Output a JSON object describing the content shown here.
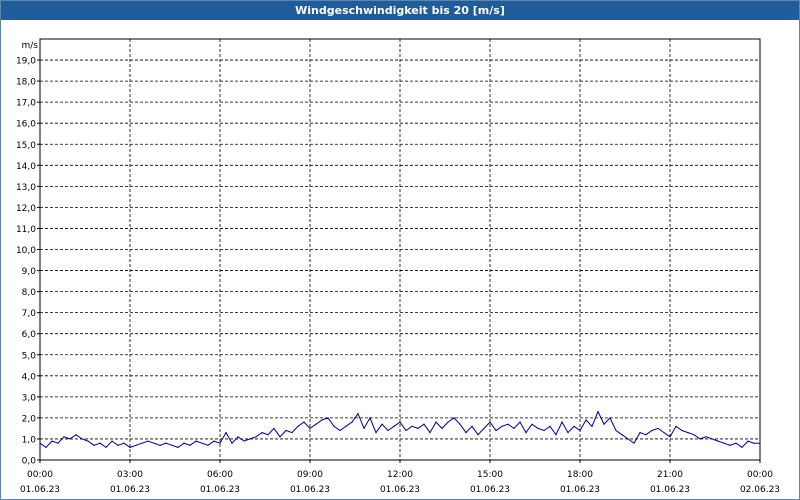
{
  "window": {
    "title": "Windgeschwindigkeit bis 20 [m/s]"
  },
  "chart_data": {
    "type": "line",
    "title": "Windgeschwindigkeit bis 20 [m/s]",
    "ylabel": "m/s",
    "ylim": [
      0,
      20
    ],
    "y_ticks": [
      "0,0",
      "1,0",
      "2,0",
      "3,0",
      "4,0",
      "5,0",
      "6,0",
      "7,0",
      "8,0",
      "9,0",
      "10,0",
      "11,0",
      "12,0",
      "13,0",
      "14,0",
      "15,0",
      "16,0",
      "17,0",
      "18,0",
      "19,0"
    ],
    "x_ticks": [
      {
        "time": "00:00",
        "date": "01.06.23"
      },
      {
        "time": "03:00",
        "date": "01.06.23"
      },
      {
        "time": "06:00",
        "date": "01.06.23"
      },
      {
        "time": "09:00",
        "date": "01.06.23"
      },
      {
        "time": "12:00",
        "date": "01.06.23"
      },
      {
        "time": "15:00",
        "date": "01.06.23"
      },
      {
        "time": "18:00",
        "date": "01.06.23"
      },
      {
        "time": "21:00",
        "date": "01.06.23"
      },
      {
        "time": "00:00",
        "date": "02.06.23"
      }
    ],
    "x_unit": "hours",
    "xlim": [
      0,
      24
    ],
    "grid": true,
    "line_color": "#00008b",
    "series": [
      {
        "x": [
          0,
          0.2,
          0.4,
          0.6,
          0.8,
          1.0,
          1.2,
          1.4,
          1.6,
          1.8,
          2.0,
          2.2,
          2.4,
          2.6,
          2.8,
          3.0,
          3.2,
          3.4,
          3.6,
          3.8,
          4.0,
          4.2,
          4.4,
          4.6,
          4.8,
          5.0,
          5.2,
          5.4,
          5.6,
          5.8,
          6.0,
          6.2,
          6.4,
          6.6,
          6.8,
          7.0,
          7.2,
          7.4,
          7.6,
          7.8,
          8.0,
          8.2,
          8.4,
          8.6,
          8.8,
          9.0,
          9.2,
          9.4,
          9.6,
          9.8,
          10.0,
          10.2,
          10.4,
          10.6,
          10.8,
          11.0,
          11.2,
          11.4,
          11.6,
          11.8,
          12.0,
          12.2,
          12.4,
          12.6,
          12.8,
          13.0,
          13.2,
          13.4,
          13.6,
          13.8,
          14.0,
          14.2,
          14.4,
          14.6,
          14.8,
          15.0,
          15.2,
          15.4,
          15.6,
          15.8,
          16.0,
          16.2,
          16.4,
          16.6,
          16.8,
          17.0,
          17.2,
          17.4,
          17.6,
          17.8,
          18.0,
          18.2,
          18.4,
          18.6,
          18.8,
          19.0,
          19.2,
          19.4,
          19.6,
          19.8,
          20.0,
          20.2,
          20.4,
          20.6,
          20.8,
          21.0,
          21.2,
          21.4,
          21.6,
          21.8,
          22.0,
          22.2,
          22.4,
          22.6,
          22.8,
          23.0,
          23.2,
          23.4,
          23.6,
          23.8,
          24.0
        ],
        "y": [
          0.8,
          0.6,
          0.9,
          0.8,
          1.1,
          1.0,
          1.2,
          1.0,
          0.9,
          0.7,
          0.8,
          0.6,
          0.9,
          0.7,
          0.8,
          0.6,
          0.7,
          0.8,
          0.9,
          0.8,
          0.7,
          0.8,
          0.7,
          0.6,
          0.8,
          0.7,
          0.9,
          0.8,
          0.7,
          0.9,
          0.8,
          1.3,
          0.8,
          1.1,
          0.9,
          1.0,
          1.1,
          1.3,
          1.2,
          1.5,
          1.1,
          1.4,
          1.3,
          1.6,
          1.8,
          1.5,
          1.7,
          1.9,
          2.0,
          1.6,
          1.4,
          1.6,
          1.8,
          2.2,
          1.5,
          2.0,
          1.3,
          1.7,
          1.4,
          1.6,
          1.8,
          1.4,
          1.6,
          1.5,
          1.7,
          1.3,
          1.8,
          1.5,
          1.8,
          2.0,
          1.7,
          1.3,
          1.6,
          1.2,
          1.5,
          1.8,
          1.4,
          1.6,
          1.7,
          1.5,
          1.8,
          1.3,
          1.7,
          1.5,
          1.4,
          1.6,
          1.2,
          1.8,
          1.3,
          1.6,
          1.4,
          1.9,
          1.6,
          2.3,
          1.7,
          2.0,
          1.4,
          1.2,
          1.0,
          0.8,
          1.3,
          1.2,
          1.4,
          1.5,
          1.3,
          1.1,
          1.6,
          1.4,
          1.3,
          1.2,
          1.0,
          1.1,
          1.0,
          0.9,
          0.8,
          0.7,
          0.8,
          0.6,
          0.9,
          0.8,
          0.8
        ]
      }
    ]
  }
}
